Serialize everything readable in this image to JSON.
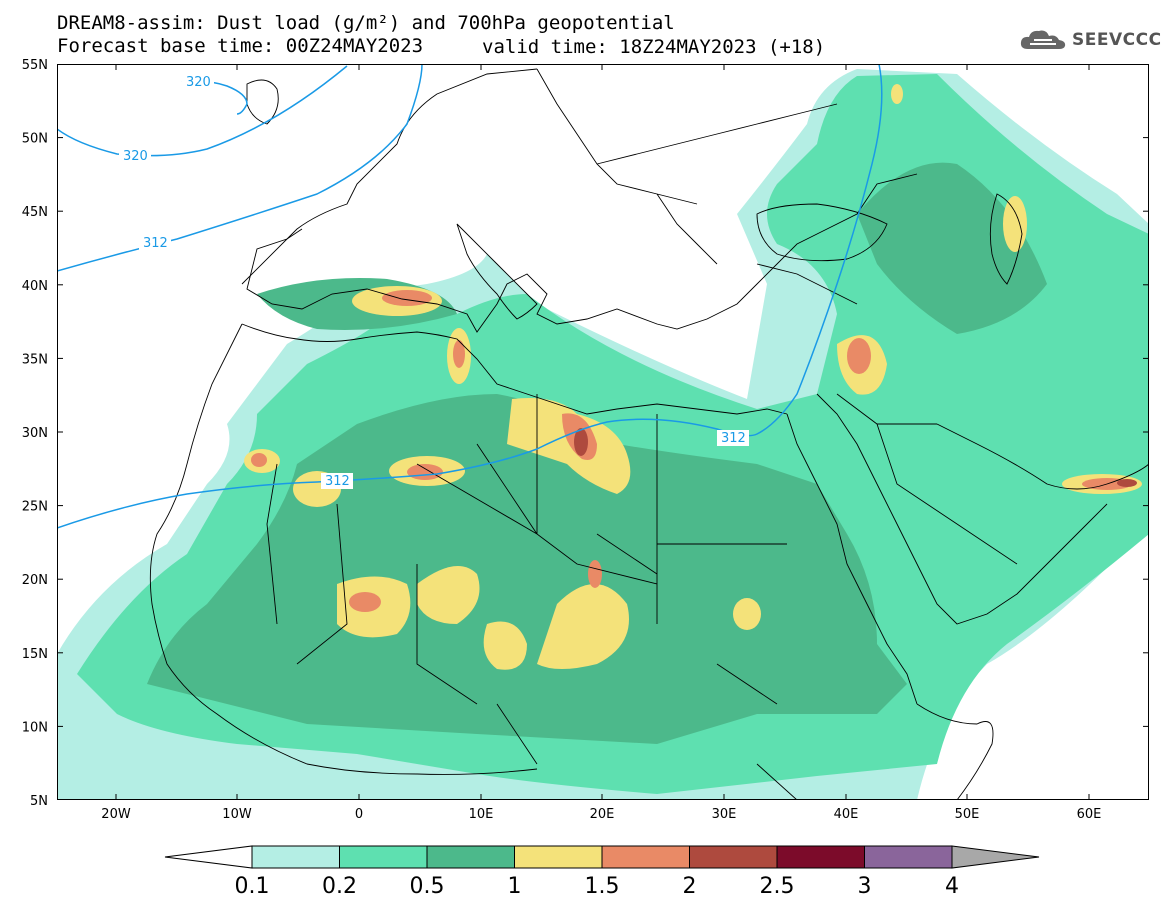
{
  "title": {
    "line1": "DREAM8-assim: Dust load (g/m²) and 700hPa geopotential",
    "line2_left": "Forecast base time: 00Z24MAY2023",
    "line2_right": "valid time: 18Z24MAY2023 (+18)"
  },
  "logo": {
    "text": "SEEVCCC",
    "icon": "cloud-icon"
  },
  "axes": {
    "lat_labels": [
      "55N",
      "50N",
      "45N",
      "40N",
      "35N",
      "30N",
      "25N",
      "20N",
      "15N",
      "10N",
      "5N"
    ],
    "lon_labels": [
      "20W",
      "10W",
      "0",
      "10E",
      "20E",
      "30E",
      "40E",
      "50E",
      "60E"
    ]
  },
  "contours": [
    {
      "label": "320"
    },
    {
      "label": "320"
    },
    {
      "label": "312"
    },
    {
      "label": "312"
    },
    {
      "label": "312"
    }
  ],
  "colorbar": {
    "labels": [
      "0.1",
      "0.2",
      "0.5",
      "1",
      "1.5",
      "2",
      "2.5",
      "3",
      "4"
    ],
    "colors": [
      "#b4eee4",
      "#5ee0b0",
      "#4cb98b",
      "#f4e27a",
      "#e98a66",
      "#ae4a3e",
      "#7c0b2a",
      "#8a659b",
      "#a8a8a8"
    ]
  },
  "colors": {
    "land": "#ffffff",
    "contour": "#1a9ae6",
    "border": "#000000"
  }
}
